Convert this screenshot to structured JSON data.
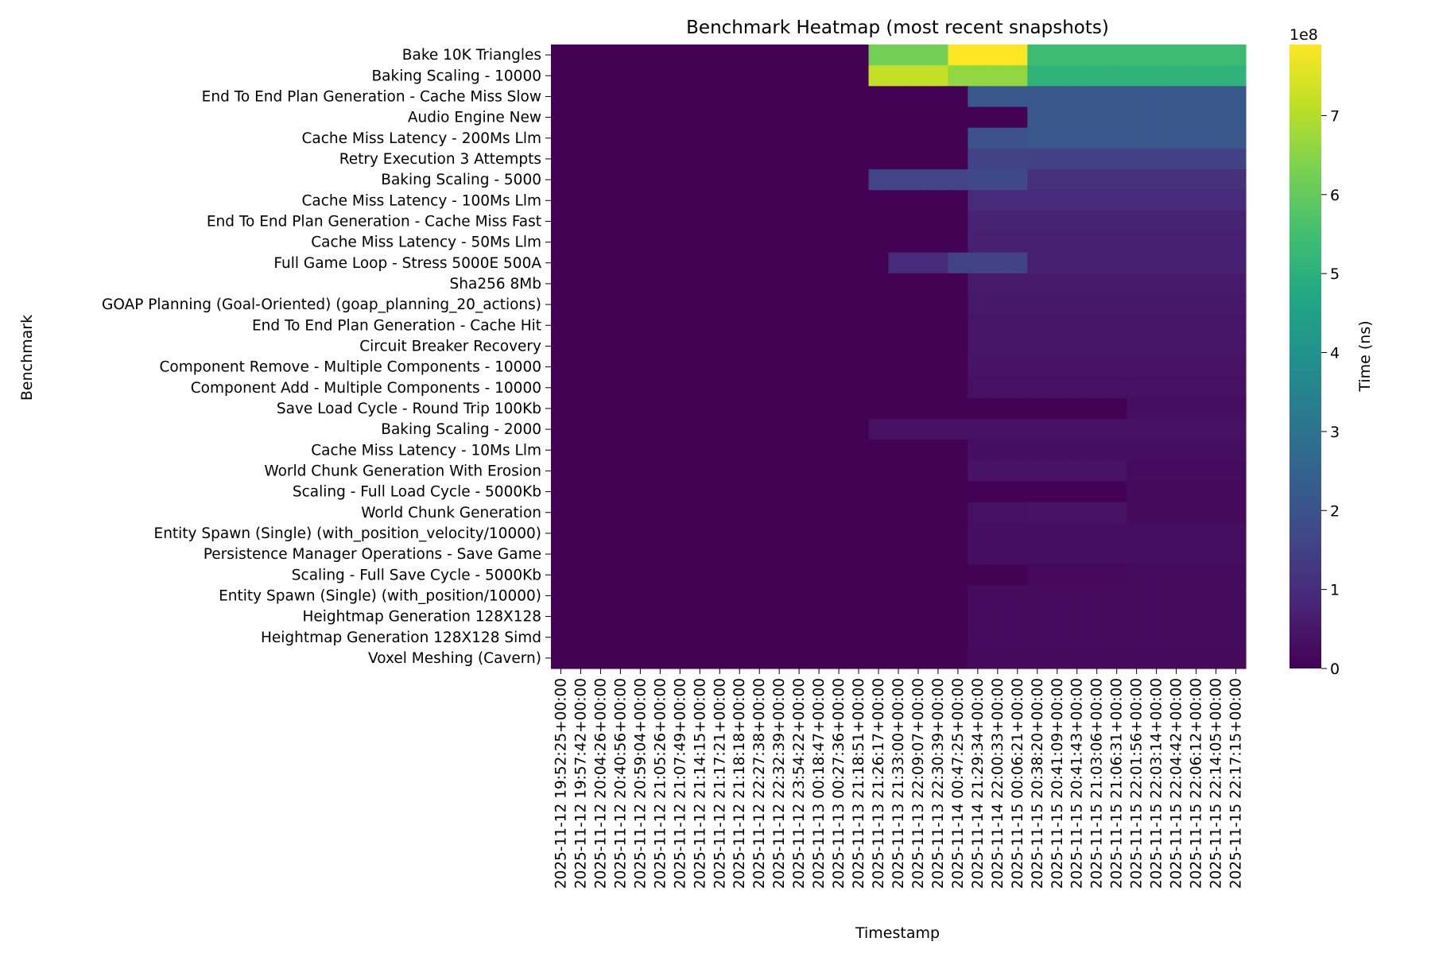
{
  "chart_data": {
    "type": "heatmap",
    "title": "Benchmark Heatmap (most recent snapshots)",
    "xlabel": "Timestamp",
    "ylabel": "Benchmark",
    "colorbar": {
      "label": "Time (ns)",
      "offset_text": "1e8",
      "ticks": [
        0,
        1,
        2,
        3,
        4,
        5,
        6,
        7
      ],
      "tick_multiplier": 100000000,
      "range": [
        0,
        790000000
      ],
      "colormap": "viridis",
      "placement": "right"
    },
    "rows": [
      "Bake 10K Triangles",
      "Baking Scaling - 10000",
      "End To End Plan Generation - Cache Miss Slow",
      "Audio Engine New",
      "Cache Miss Latency - 200Ms Llm",
      "Retry Execution 3 Attempts",
      "Baking Scaling - 5000",
      "Cache Miss Latency - 100Ms Llm",
      "End To End Plan Generation - Cache Miss Fast",
      "Cache Miss Latency - 50Ms Llm",
      "Full Game Loop - Stress 5000E 500A",
      "Sha256 8Mb",
      "GOAP Planning (Goal-Oriented) (goap_planning_20_actions)",
      "End To End Plan Generation - Cache Hit",
      "Circuit Breaker Recovery",
      "Component Remove - Multiple Components - 10000",
      "Component Add - Multiple Components - 10000",
      "Save Load Cycle - Round Trip 100Kb",
      "Baking Scaling - 2000",
      "Cache Miss Latency - 10Ms Llm",
      "World Chunk Generation With Erosion",
      "Scaling - Full Load Cycle - 5000Kb",
      "World Chunk Generation",
      "Entity Spawn (Single) (with_position_velocity/10000)",
      "Persistence Manager Operations - Save Game",
      "Scaling - Full Save Cycle - 5000Kb",
      "Entity Spawn (Single) (with_position/10000)",
      "Heightmap Generation 128X128",
      "Heightmap Generation 128X128 Simd",
      "Voxel Meshing (Cavern)"
    ],
    "columns": [
      "2025-11-12 19:52:25+00:00",
      "2025-11-12 19:57:42+00:00",
      "2025-11-12 20:04:26+00:00",
      "2025-11-12 20:40:56+00:00",
      "2025-11-12 20:59:04+00:00",
      "2025-11-12 21:05:26+00:00",
      "2025-11-12 21:07:49+00:00",
      "2025-11-12 21:14:15+00:00",
      "2025-11-12 21:17:21+00:00",
      "2025-11-12 21:18:18+00:00",
      "2025-11-12 22:27:38+00:00",
      "2025-11-12 22:32:39+00:00",
      "2025-11-12 23:54:22+00:00",
      "2025-11-13 00:18:47+00:00",
      "2025-11-13 00:27:36+00:00",
      "2025-11-13 21:18:51+00:00",
      "2025-11-13 21:26:17+00:00",
      "2025-11-13 21:33:00+00:00",
      "2025-11-13 22:09:07+00:00",
      "2025-11-13 22:30:39+00:00",
      "2025-11-14 00:47:25+00:00",
      "2025-11-14 21:29:34+00:00",
      "2025-11-14 22:00:33+00:00",
      "2025-11-15 00:06:21+00:00",
      "2025-11-15 20:38:20+00:00",
      "2025-11-15 20:41:09+00:00",
      "2025-11-15 20:41:43+00:00",
      "2025-11-15 21:03:06+00:00",
      "2025-11-15 21:06:31+00:00",
      "2025-11-15 22:01:56+00:00",
      "2025-11-15 22:03:14+00:00",
      "2025-11-15 22:04:42+00:00",
      "2025-11-15 22:06:12+00:00",
      "2025-11-15 22:14:05+00:00",
      "2025-11-15 22:17:15+00:00"
    ],
    "row_segments": [
      [
        [
          16,
          20,
          6.2
        ],
        [
          20,
          24,
          7.9
        ],
        [
          24,
          35,
          5.4
        ]
      ],
      [
        [
          16,
          20,
          7.2
        ],
        [
          20,
          24,
          6.6
        ],
        [
          24,
          35,
          5.1
        ]
      ],
      [
        [
          21,
          35,
          2.15
        ]
      ],
      [
        [
          24,
          35,
          2.15
        ]
      ],
      [
        [
          21,
          24,
          2.0
        ],
        [
          24,
          35,
          2.15
        ]
      ],
      [
        [
          21,
          24,
          1.55
        ],
        [
          24,
          35,
          1.5
        ]
      ],
      [
        [
          16,
          21,
          1.6
        ],
        [
          21,
          24,
          1.7
        ],
        [
          24,
          35,
          1.05
        ]
      ],
      [
        [
          21,
          35,
          0.95
        ]
      ],
      [
        [
          21,
          35,
          0.75
        ]
      ],
      [
        [
          21,
          35,
          0.7
        ]
      ],
      [
        [
          17,
          20,
          0.95
        ],
        [
          20,
          24,
          1.55
        ],
        [
          24,
          35,
          0.7
        ]
      ],
      [
        [
          21,
          35,
          0.55
        ]
      ],
      [
        [
          21,
          35,
          0.5
        ]
      ],
      [
        [
          21,
          35,
          0.45
        ]
      ],
      [
        [
          21,
          35,
          0.45
        ]
      ],
      [
        [
          21,
          35,
          0.4
        ]
      ],
      [
        [
          21,
          35,
          0.35
        ]
      ],
      [
        [
          29,
          35,
          0.3
        ]
      ],
      [
        [
          16,
          35,
          0.35
        ]
      ],
      [
        [
          21,
          35,
          0.3
        ]
      ],
      [
        [
          21,
          29,
          0.4
        ],
        [
          29,
          35,
          0.25
        ]
      ],
      [
        [
          29,
          35,
          0.2
        ]
      ],
      [
        [
          21,
          24,
          0.35
        ],
        [
          24,
          29,
          0.4
        ],
        [
          29,
          35,
          0.2
        ]
      ],
      [
        [
          21,
          35,
          0.3
        ]
      ],
      [
        [
          21,
          35,
          0.3
        ]
      ],
      [
        [
          24,
          29,
          0.15
        ],
        [
          29,
          35,
          0.25
        ]
      ],
      [
        [
          21,
          35,
          0.25
        ]
      ],
      [
        [
          21,
          35,
          0.25
        ]
      ],
      [
        [
          21,
          35,
          0.25
        ]
      ],
      [
        [
          21,
          35,
          0.2
        ]
      ]
    ],
    "value_units": "1e8 ns",
    "default_value": 0.03
  }
}
